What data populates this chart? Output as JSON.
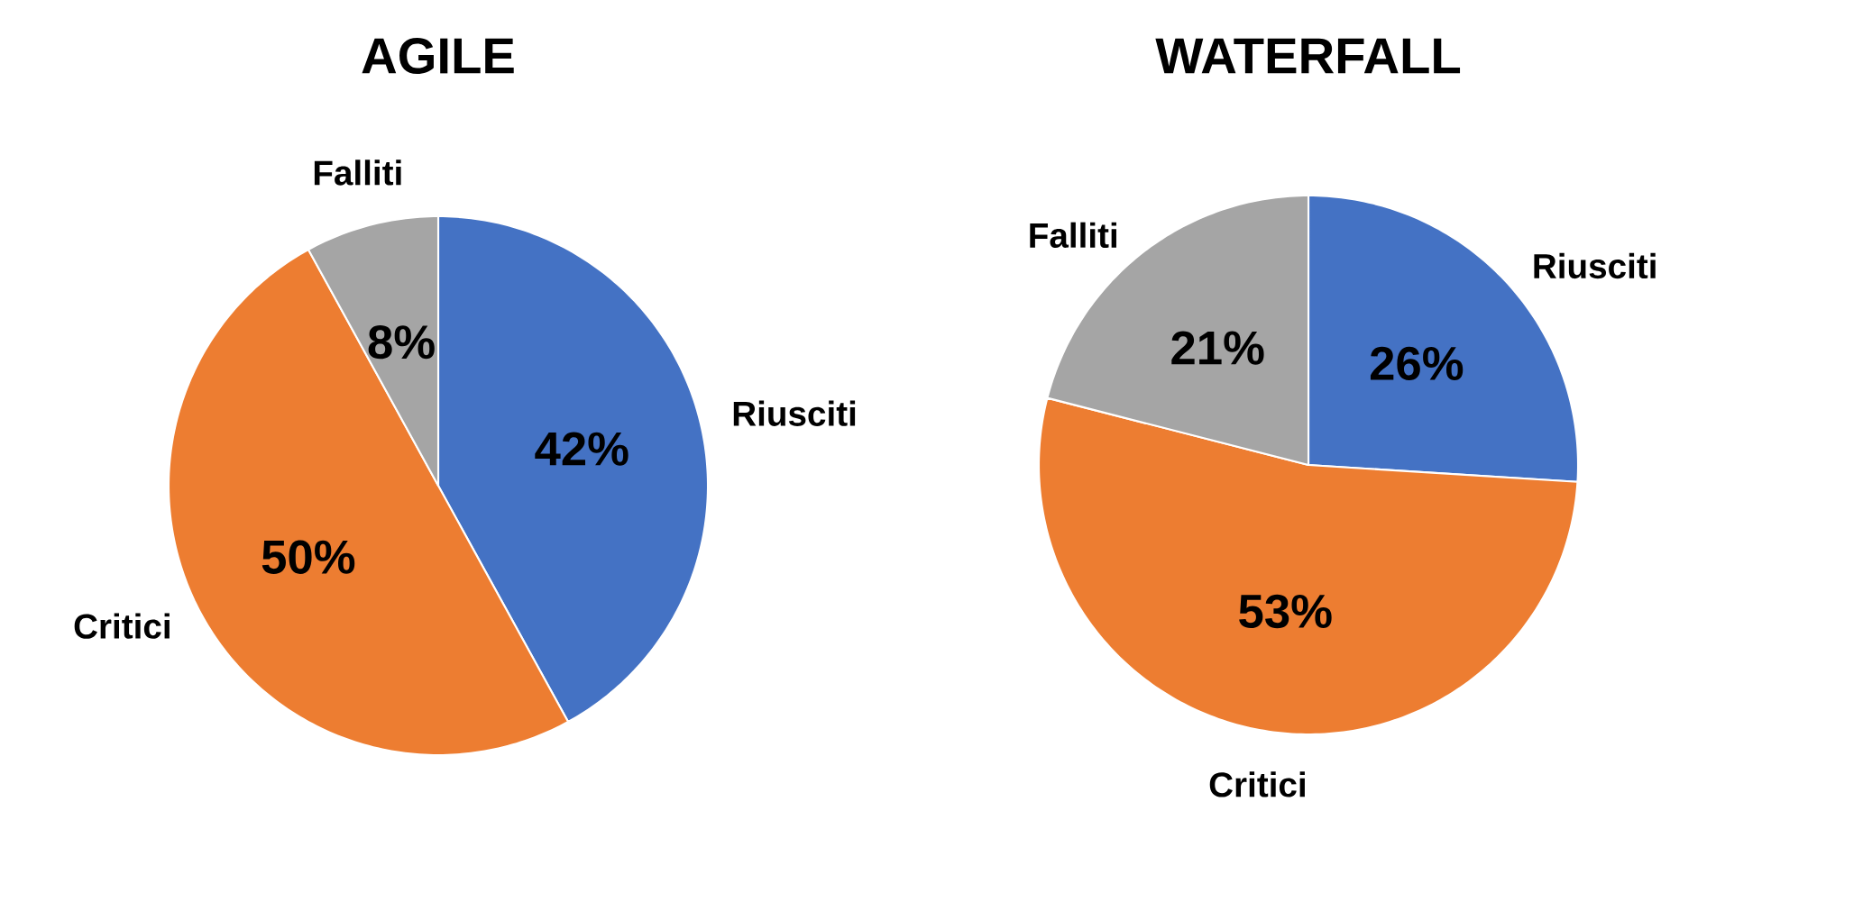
{
  "chart_data": [
    {
      "type": "pie",
      "title": "AGILE",
      "categories": [
        "Riusciti",
        "Critici",
        "Falliti"
      ],
      "values": [
        42,
        50,
        8
      ],
      "colors": [
        "#4472c4",
        "#ed7d31",
        "#a5a5a5"
      ],
      "value_labels": [
        "42%",
        "50%",
        "8%"
      ]
    },
    {
      "type": "pie",
      "title": "WATERFALL",
      "categories": [
        "Riusciti",
        "Critici",
        "Falliti"
      ],
      "values": [
        26,
        53,
        21
      ],
      "colors": [
        "#4472c4",
        "#ed7d31",
        "#a5a5a5"
      ],
      "value_labels": [
        "26%",
        "53%",
        "21%"
      ]
    }
  ]
}
